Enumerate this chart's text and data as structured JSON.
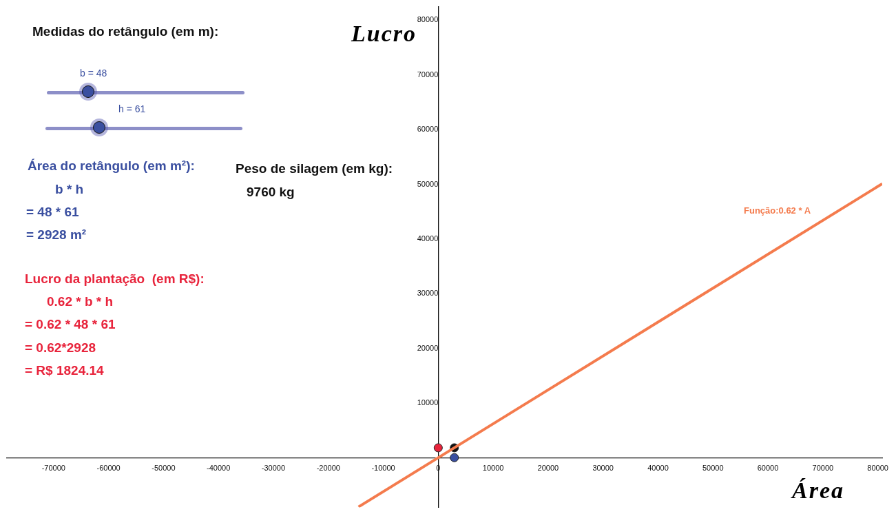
{
  "chart_data": {
    "type": "line",
    "xlabel": "Área",
    "ylabel": "Lucro",
    "xlim": [
      -78500,
      80800
    ],
    "ylim": [
      -9100,
      82500
    ],
    "xticks": [
      -70000,
      -60000,
      -50000,
      -40000,
      -30000,
      -20000,
      -10000,
      0,
      10000,
      20000,
      30000,
      40000,
      50000,
      60000,
      70000,
      80000
    ],
    "yticks": [
      10000,
      20000,
      30000,
      40000,
      50000,
      60000,
      70000,
      80000
    ],
    "grid": false,
    "legend": false,
    "series": [
      {
        "color": "#f47b4d",
        "x": [
          -14500,
          80800
        ],
        "values": [
          -9000,
          50100
        ],
        "marker": "none"
      },
      {
        "type": "scatter",
        "color": "#e8243c",
        "x": [
          0
        ],
        "values": [
          1800
        ],
        "marker": "circle"
      },
      {
        "type": "scatter",
        "color": "#111111",
        "x": [
          2928
        ],
        "values": [
          1800
        ],
        "marker": "circle"
      },
      {
        "type": "scatter",
        "color": "#3a4fa0",
        "x": [
          2928
        ],
        "values": [
          0
        ],
        "marker": "circle"
      }
    ],
    "annotations": [
      "Medidas do retângulo (em m):",
      "b = 48",
      "h = 61",
      "Área do retângulo (em m²):",
      "b * h",
      "= 48 * 61",
      "= 2928 m²",
      "Peso de silagem (em kg):",
      "9760 kg",
      "Lucro da plantação  (em R$):",
      "0.62 * b * h",
      "= 0.62 * 48 * 61",
      "= 0.62*2928",
      "= R$ 1824.14",
      "Função:0.62 * A"
    ]
  }
}
